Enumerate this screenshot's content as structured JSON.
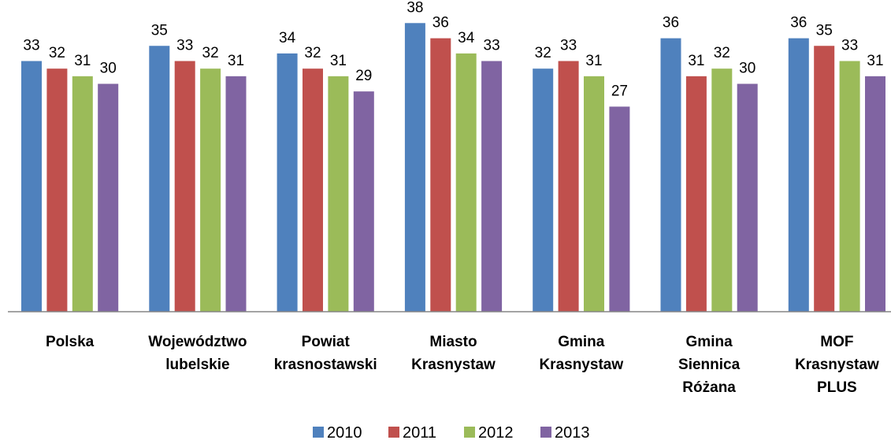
{
  "chart_data": {
    "type": "bar",
    "title": "",
    "xlabel": "",
    "ylabel": "",
    "ylim": [
      0,
      40
    ],
    "grid": false,
    "legend_position": "bottom",
    "categories": [
      [
        "Polska"
      ],
      [
        "Województwo",
        "lubelskie"
      ],
      [
        "Powiat",
        "krasnostawski"
      ],
      [
        "Miasto",
        "Krasnystaw"
      ],
      [
        "Gmina",
        "Krasnystaw"
      ],
      [
        "Gmina",
        "Siennica",
        "Różana"
      ],
      [
        "MOF",
        "Krasnystaw",
        "PLUS"
      ]
    ],
    "series": [
      {
        "name": "2010",
        "color": "#4F81BD",
        "values": [
          33,
          35,
          34,
          38,
          32,
          36,
          36
        ]
      },
      {
        "name": "2011",
        "color": "#C0504D",
        "values": [
          32,
          33,
          32,
          36,
          33,
          31,
          35
        ]
      },
      {
        "name": "2012",
        "color": "#9BBB59",
        "values": [
          31,
          32,
          31,
          34,
          31,
          32,
          33
        ]
      },
      {
        "name": "2013",
        "color": "#8064A2",
        "values": [
          30,
          31,
          29,
          33,
          27,
          30,
          31
        ]
      }
    ]
  }
}
